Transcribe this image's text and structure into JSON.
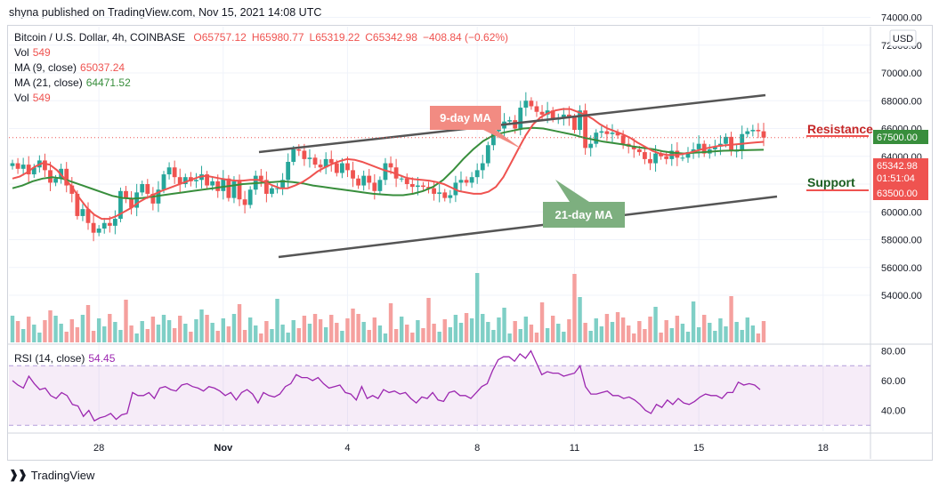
{
  "published_line": "shyna published on TradingView.com, Nov 15, 2021 14:08 UTC",
  "symbol_title": "Bitcoin / U.S. Dollar, 4h, COINBASE",
  "ohlc": {
    "o": "O65757.12",
    "h": "H65980.77",
    "l": "L65319.22",
    "c": "C65342.98",
    "chg": "−408.84 (−0.62%)"
  },
  "legend": {
    "vol_label": "Vol",
    "vol_value": "549",
    "ma9_label": "MA (9, close)",
    "ma9_value": "65037.24",
    "ma21_label": "MA (21, close)",
    "ma21_value": "64471.52",
    "vol2_label": "Vol",
    "vol2_value": "549",
    "rsi_label": "RSI (14, close)",
    "rsi_value": "54.45"
  },
  "currency_badge": "USD",
  "annotations": {
    "ma9": "9-day MA",
    "ma21": "21-day MA",
    "resistance": "Resistance",
    "support": "Support"
  },
  "price_tags": {
    "resistance": "67500.00",
    "last": "65342.98",
    "countdown": "01:51:04",
    "support": "63500.00"
  },
  "footer": {
    "brand": "TradingView"
  },
  "colors": {
    "up": "#26a69a",
    "down": "#ef5350",
    "ma9": "#ef5350",
    "ma21": "#388e3c",
    "rsi": "#9c27b0"
  },
  "chart_data": [
    {
      "type": "candlestick",
      "title": "Bitcoin / U.S. Dollar, 4h, COINBASE",
      "x_ticks": [
        "28",
        "Nov",
        "4",
        "8",
        "11",
        "15",
        "18"
      ],
      "y_ticks": [
        "74000.00",
        "72000.00",
        "70000.00",
        "68000.00",
        "66000.00",
        "64000.00",
        "62000.00",
        "60000.00",
        "58000.00",
        "56000.00",
        "54000.00"
      ],
      "ylim": [
        52500,
        75000
      ],
      "close": [
        63500,
        63100,
        63400,
        62700,
        63200,
        63700,
        63000,
        62100,
        62400,
        63100,
        61900,
        61300,
        59700,
        60200,
        59200,
        58500,
        58800,
        59200,
        59000,
        59500,
        61500,
        61000,
        60300,
        61400,
        62000,
        61300,
        60600,
        61600,
        62700,
        63200,
        62500,
        62000,
        62500,
        62200,
        62300,
        62700,
        61900,
        62200,
        61500,
        62400,
        61000,
        62200,
        60900,
        60500,
        61600,
        62600,
        62300,
        61300,
        61700,
        61700,
        62300,
        63600,
        64500,
        64400,
        63800,
        63900,
        63400,
        63200,
        63800,
        63500,
        62800,
        63500,
        63000,
        62400,
        61900,
        62600,
        62100,
        61500,
        62300,
        63500,
        63200,
        62400,
        62400,
        62000,
        61800,
        61900,
        61800,
        61700,
        61300,
        61400,
        61000,
        61200,
        62100,
        62300,
        62100,
        62500,
        63000,
        63500,
        64800,
        65800,
        66000,
        66500,
        66600,
        66000,
        67500,
        68000,
        67600,
        67200,
        67000,
        67300,
        66700,
        66700,
        67000,
        66800,
        65900,
        67300,
        64600,
        64900,
        65700,
        65800,
        65600,
        65700,
        65500,
        64900,
        64700,
        64500,
        64300,
        63800,
        63500,
        64200,
        64000,
        63800,
        64400,
        63900,
        63900,
        64300,
        64500,
        64900,
        64200,
        64500,
        64700,
        64900,
        65400,
        64400,
        64400,
        65600,
        65800,
        65900,
        65800,
        65343
      ],
      "ma9": [
        62400,
        62550,
        62850,
        63250,
        63500,
        63400,
        63000,
        62400,
        61800,
        61000,
        60300,
        59800,
        59500,
        59500,
        59700,
        60000,
        60300,
        60700,
        61000,
        61250,
        61500,
        61700,
        61900,
        62100,
        62300,
        62500,
        62600,
        62500,
        62400,
        62300,
        62250,
        62250,
        62300,
        62300,
        62150,
        61900,
        61700,
        61700,
        61900,
        62150,
        62500,
        62900,
        63200,
        63450,
        63650,
        63800,
        63750,
        63600,
        63400,
        63200,
        63000,
        62850,
        62650,
        62450,
        62350,
        62300,
        62250,
        62150,
        62000,
        61750,
        61500,
        61400,
        61300,
        61300,
        61450,
        61800,
        62500,
        63500,
        64500,
        65500,
        66300,
        66800,
        67100,
        67300,
        67400,
        67400,
        67200,
        67000,
        66700,
        66300,
        66000,
        65800,
        65600,
        65350,
        65000,
        64700,
        64400,
        64200,
        64100,
        64100,
        64150,
        64250,
        64400,
        64550,
        64650,
        64750,
        64800,
        64850,
        64900,
        64950,
        65000,
        65037
      ],
      "ma21": [
        61700,
        61900,
        62200,
        62400,
        62500,
        62400,
        62150,
        61900,
        61650,
        61400,
        61150,
        61000,
        60950,
        61000,
        61100,
        61200,
        61300,
        61400,
        61500,
        61600,
        61700,
        61800,
        61900,
        62000,
        62050,
        62100,
        62150,
        62200,
        62150,
        62050,
        61900,
        61800,
        61700,
        61600,
        61500,
        61400,
        61300,
        61250,
        61200,
        61200,
        61300,
        61500,
        61800,
        62300,
        63000,
        63800,
        64500,
        65100,
        65500,
        65700,
        65850,
        66000,
        66050,
        66000,
        65850,
        65700,
        65550,
        65350,
        65200,
        65050,
        64950,
        64850,
        64700,
        64600,
        64500,
        64350,
        64250,
        64200,
        64250,
        64300,
        64350,
        64400,
        64420,
        64440,
        64460,
        64470
      ],
      "rsi": [
        60,
        57,
        55,
        63,
        58,
        54,
        55,
        50,
        48,
        52,
        50,
        44,
        43,
        36,
        40,
        33,
        35,
        36,
        38,
        34,
        37,
        38,
        52,
        50,
        50,
        52,
        48,
        55,
        56,
        54,
        53,
        57,
        58,
        56,
        55,
        53,
        56,
        55,
        53,
        50,
        52,
        47,
        52,
        54,
        51,
        45,
        52,
        50,
        49,
        51,
        56,
        58,
        64,
        62,
        62,
        60,
        62,
        58,
        55,
        56,
        57,
        52,
        51,
        47,
        56,
        48,
        50,
        48,
        54,
        52,
        53,
        51,
        52,
        48,
        45,
        49,
        48,
        52,
        47,
        46,
        52,
        53,
        50,
        50,
        48,
        52,
        56,
        58,
        67,
        74,
        76,
        76,
        73,
        78,
        75,
        80,
        72,
        64,
        66,
        65,
        65,
        63,
        64,
        65,
        70,
        56,
        51,
        51,
        52,
        53,
        50,
        50,
        48,
        49,
        47,
        44,
        40,
        38,
        44,
        42,
        47,
        44,
        48,
        45,
        44,
        46,
        49,
        51,
        50,
        50,
        48,
        52,
        52,
        59,
        57,
        58,
        57,
        54
      ]
    }
  ]
}
